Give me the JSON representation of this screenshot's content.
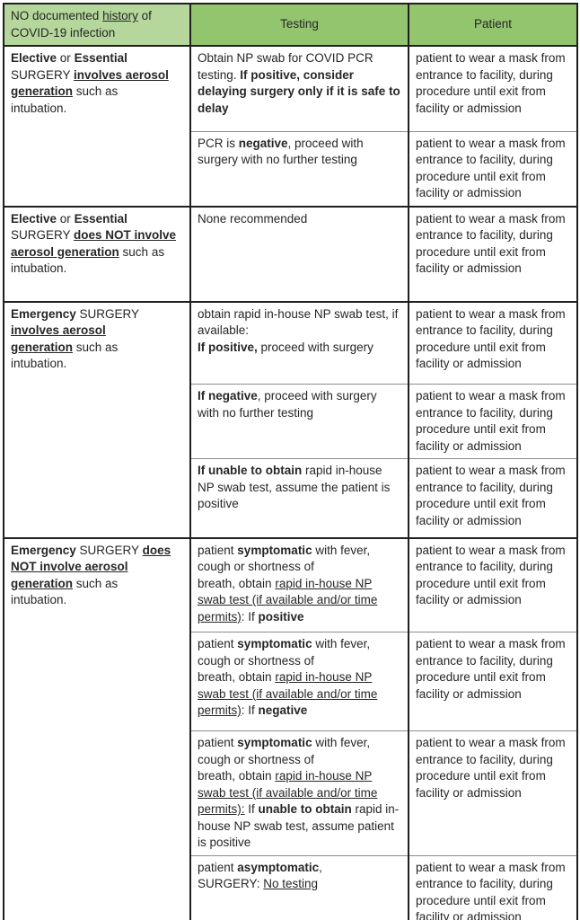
{
  "colors": {
    "header_left_bg": "#b6d79c",
    "header_main_bg": "#93c46e",
    "border_dark": "#1f1f1f",
    "border_light": "#8c8c8c",
    "text": "#262626"
  },
  "header": {
    "scenario": [
      {
        "t": "NO documented "
      },
      {
        "t": "history",
        "u": true
      },
      {
        "t": " of COVID-19 infection"
      }
    ],
    "testing": "Testing",
    "patient": "Patient"
  },
  "patient_text": "patient to wear a mask from entrance to facility, during procedure until exit from facility or admission",
  "groups": [
    {
      "scenario": [
        {
          "t": "Elective",
          "b": true
        },
        {
          "t": " or "
        },
        {
          "t": "Essential",
          "b": true
        },
        {
          "br": true
        },
        {
          "t": "SURGERY "
        },
        {
          "t": "involves aerosol",
          "b": true,
          "u": true
        },
        {
          "br": true
        },
        {
          "t": "generation",
          "b": true,
          "u": true
        },
        {
          "t": " such as"
        },
        {
          "br": true
        },
        {
          "t": "intubation."
        }
      ],
      "rows": [
        {
          "testing": [
            {
              "t": "Obtain NP swab for COVID PCR testing.  "
            },
            {
              "t": "If positive, consider delaying surgery only if it is safe to delay",
              "b": true
            }
          ]
        },
        {
          "testing": [
            {
              "t": "PCR is "
            },
            {
              "t": "negative",
              "b": true
            },
            {
              "t": ", proceed with surgery with no further testing"
            }
          ]
        }
      ]
    },
    {
      "scenario": [
        {
          "t": "Elective",
          "b": true
        },
        {
          "t": " or "
        },
        {
          "t": "Essential",
          "b": true
        },
        {
          "br": true
        },
        {
          "t": "SURGERY "
        },
        {
          "t": "does NOT involve",
          "b": true,
          "u": true
        },
        {
          "br": true
        },
        {
          "t": "aerosol generation",
          "b": true,
          "u": true
        },
        {
          "t": " such as"
        },
        {
          "br": true
        },
        {
          "t": "intubation."
        }
      ],
      "rows": [
        {
          "testing": [
            {
              "t": "None recommended"
            }
          ]
        }
      ]
    },
    {
      "scenario": [
        {
          "t": "Emergency",
          "b": true
        },
        {
          "t": " SURGERY"
        },
        {
          "br": true
        },
        {
          "t": "involves aerosol",
          "b": true,
          "u": true
        },
        {
          "br": true
        },
        {
          "t": "generation",
          "b": true,
          "u": true
        },
        {
          "t": " such as"
        },
        {
          "br": true
        },
        {
          "t": "intubation."
        }
      ],
      "rows": [
        {
          "testing": [
            {
              "t": "obtain rapid in-house NP swab test, if available:"
            },
            {
              "br": true
            },
            {
              "t": "If positive,",
              "b": true
            },
            {
              "t": " proceed with surgery"
            }
          ]
        },
        {
          "testing": [
            {
              "t": "If negative",
              "b": true
            },
            {
              "t": ", proceed with surgery with no further testing"
            }
          ]
        },
        {
          "testing": [
            {
              "t": "If unable to obtain",
              "b": true
            },
            {
              "t": " rapid in-house NP swab test, assume the patient is positive"
            }
          ]
        }
      ]
    },
    {
      "scenario": [
        {
          "t": "Emergency",
          "b": true
        },
        {
          "t": " SURGERY "
        },
        {
          "t": "does",
          "b": true,
          "u": true
        },
        {
          "br": true
        },
        {
          "t": "NOT involve aerosol",
          "b": true,
          "u": true
        },
        {
          "br": true
        },
        {
          "t": "generation",
          "b": true,
          "u": true
        },
        {
          "t": " such as"
        },
        {
          "br": true
        },
        {
          "t": "intubation."
        }
      ],
      "rows": [
        {
          "testing": [
            {
              "t": "patient "
            },
            {
              "t": "symptomatic",
              "b": true
            },
            {
              "t": " with fever,"
            },
            {
              "br": true
            },
            {
              "t": "cough or shortness of"
            },
            {
              "br": true
            },
            {
              "t": "breath, obtain "
            },
            {
              "t": "rapid in-house NP swab test (if available and/or time permits)",
              "u": true
            },
            {
              "t": ":  If "
            },
            {
              "t": "positive",
              "b": true
            }
          ]
        },
        {
          "testing": [
            {
              "t": "patient "
            },
            {
              "t": "symptomatic",
              "b": true
            },
            {
              "t": " with fever,"
            },
            {
              "br": true
            },
            {
              "t": "cough or shortness of"
            },
            {
              "br": true
            },
            {
              "t": "breath, obtain "
            },
            {
              "t": "rapid in-house NP swab test (if available and/or time permits)",
              "u": true
            },
            {
              "t": ":  If "
            },
            {
              "t": "negative",
              "b": true
            }
          ]
        },
        {
          "testing": [
            {
              "t": "patient "
            },
            {
              "t": "symptomatic",
              "b": true
            },
            {
              "t": " with fever,"
            },
            {
              "br": true
            },
            {
              "t": "cough or shortness of"
            },
            {
              "br": true
            },
            {
              "t": "breath, obtain "
            },
            {
              "t": "rapid in-house NP swab test (if available and/or time permits):",
              "u": true
            },
            {
              "t": " If "
            },
            {
              "t": "unable to obtain",
              "b": true
            },
            {
              "t": " rapid in-house NP swab test, assume patient is positive"
            }
          ]
        },
        {
          "testing": [
            {
              "t": "patient "
            },
            {
              "t": "asymptomatic",
              "b": true
            },
            {
              "t": ","
            },
            {
              "br": true
            },
            {
              "t": "SURGERY:  "
            },
            {
              "t": "No testing",
              "u": true
            }
          ]
        }
      ]
    }
  ]
}
